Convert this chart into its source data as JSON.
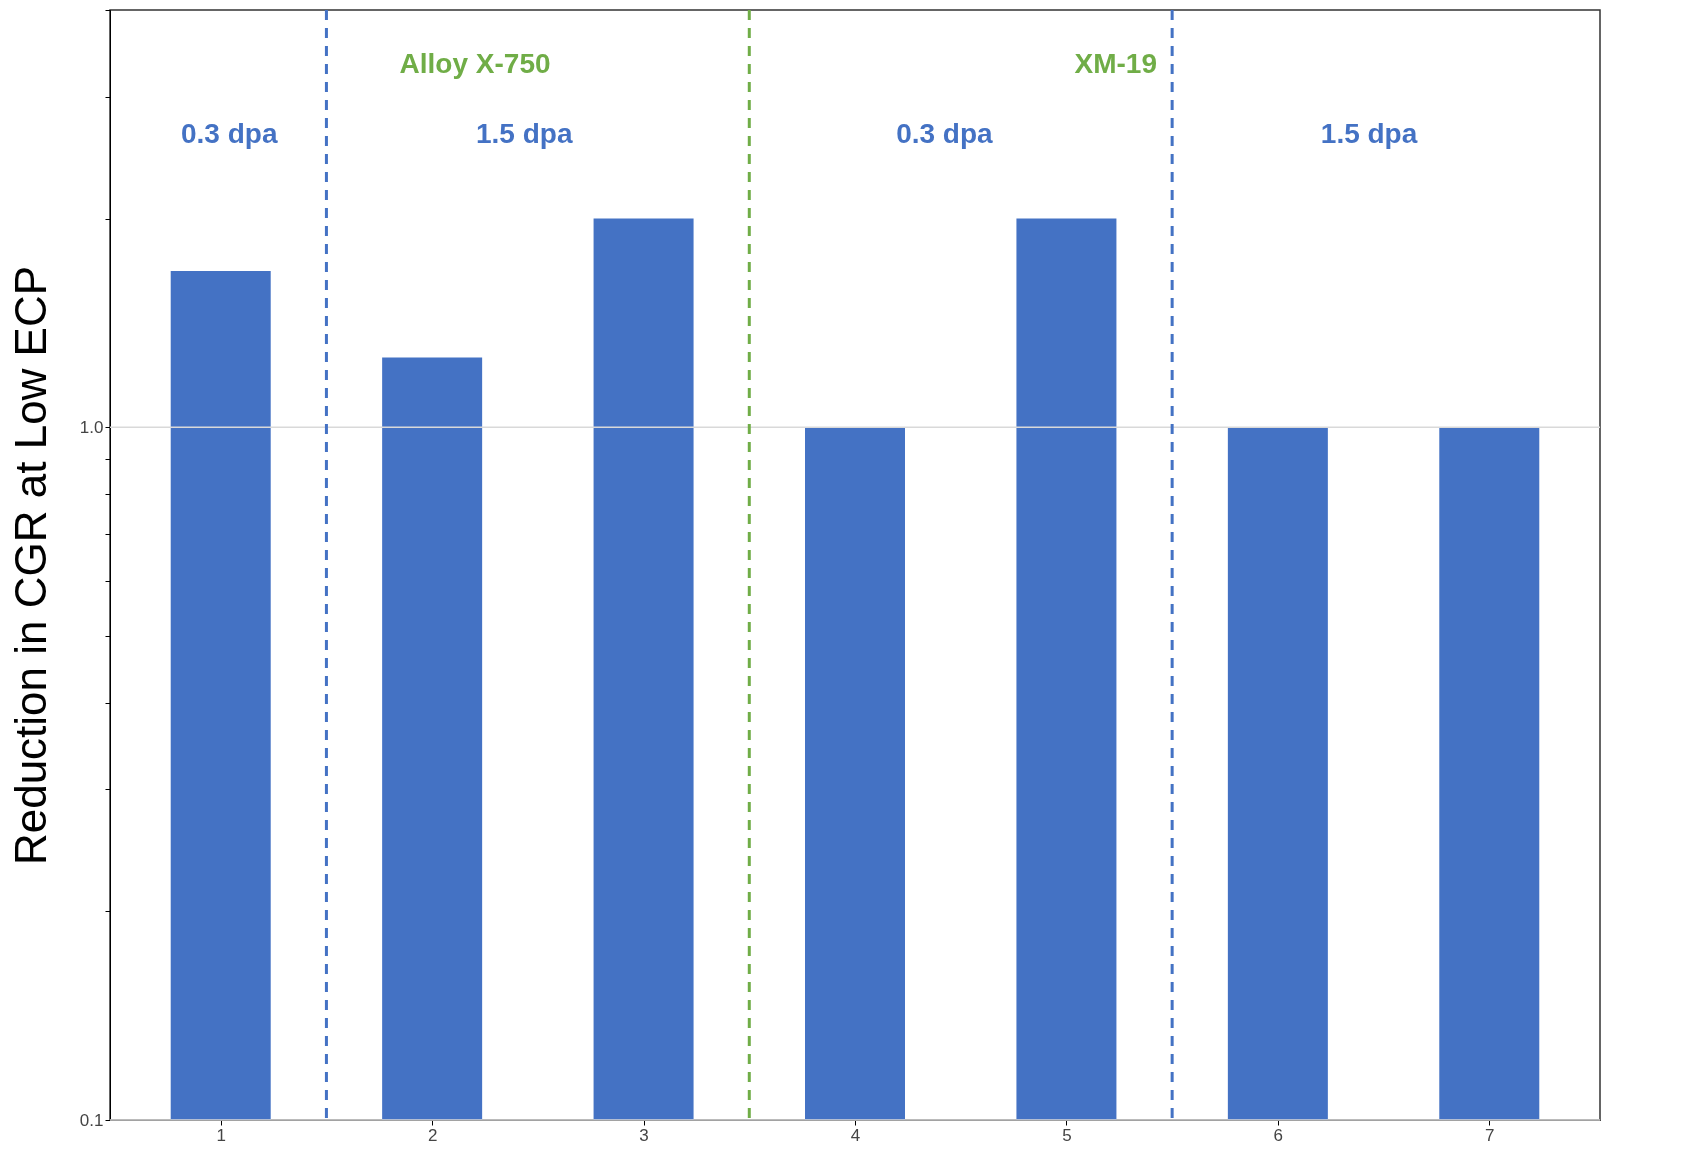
{
  "chart_data": {
    "type": "bar",
    "ylabel": "Reduction in CGR at Low ECP",
    "x": [
      1,
      2,
      3,
      4,
      5,
      6,
      7
    ],
    "values": [
      1.68,
      1.26,
      2,
      1,
      2,
      1,
      1
    ],
    "color": "#4472c4",
    "xlim": [
      0.5,
      7.5
    ],
    "xticks": [
      1,
      2,
      3,
      4,
      5,
      6,
      7
    ],
    "ylim": [
      0.1,
      4
    ],
    "log": true,
    "yticks": [
      {
        "value": 0.1,
        "label": "0.1"
      },
      {
        "value": 0.2,
        "label": null
      },
      {
        "value": 0.3,
        "label": null
      },
      {
        "value": 0.4,
        "label": null
      },
      {
        "value": 0.5,
        "label": null
      },
      {
        "value": 0.6,
        "label": null
      },
      {
        "value": 0.7,
        "label": null
      },
      {
        "value": 0.8,
        "label": null
      },
      {
        "value": 0.9,
        "label": null
      },
      {
        "value": 1,
        "label": "1.0"
      },
      {
        "value": 2,
        "label": null
      },
      {
        "value": 3,
        "label": null
      },
      {
        "value": 4,
        "label": null
      }
    ],
    "grid": "y",
    "ref_lines": [
      {
        "axis": "x",
        "value": 1.5,
        "color": "#4472c4",
        "line_style": "dashed"
      },
      {
        "axis": "x",
        "value": 3.5,
        "color": "#70ad47",
        "line_style": "dashed"
      },
      {
        "axis": "x",
        "value": 5.5,
        "color": "#4472c4",
        "line_style": "dashed"
      }
    ],
    "annotations": [
      "Alloy X-750",
      "XM-19",
      "0.3 dpa",
      "1.5 dpa",
      "0.3 dpa",
      "1.5 dpa"
    ]
  }
}
